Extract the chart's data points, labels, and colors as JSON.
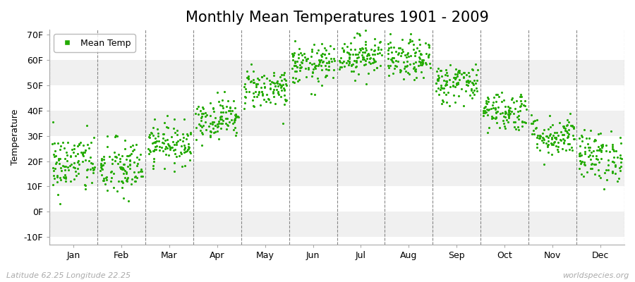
{
  "title": "Monthly Mean Temperatures 1901 - 2009",
  "ylabel": "Temperature",
  "xlabel": "",
  "dot_color": "#22aa00",
  "dot_size": 5,
  "background_color": "#ffffff",
  "plot_bg_color": "#ffffff",
  "legend_label": "Mean Temp",
  "legend_marker_color": "#22aa00",
  "ytick_labels": [
    "-10F",
    "0F",
    "10F",
    "20F",
    "30F",
    "40F",
    "50F",
    "60F",
    "70F"
  ],
  "ytick_values": [
    -10,
    0,
    10,
    20,
    30,
    40,
    50,
    60,
    70
  ],
  "ylim": [
    -13,
    72
  ],
  "month_means_F": [
    19,
    17,
    27,
    37,
    49,
    58,
    62,
    60,
    51,
    40,
    30,
    22
  ],
  "month_stds_F": [
    6,
    6,
    4,
    4,
    4,
    4,
    4,
    4,
    4,
    4,
    4,
    5
  ],
  "months": [
    "Jan",
    "Feb",
    "Mar",
    "Apr",
    "May",
    "Jun",
    "Jul",
    "Aug",
    "Sep",
    "Oct",
    "Nov",
    "Dec"
  ],
  "n_years": 109,
  "footer_left": "Latitude 62.25 Longitude 22.25",
  "footer_right": "worldspecies.org",
  "title_fontsize": 15,
  "axis_label_fontsize": 9,
  "tick_fontsize": 9,
  "footer_fontsize": 8,
  "band_colors": [
    "#f0f0f0",
    "#ffffff"
  ]
}
